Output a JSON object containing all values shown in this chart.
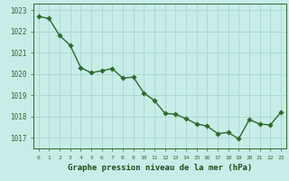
{
  "x": [
    0,
    1,
    2,
    3,
    4,
    5,
    6,
    7,
    8,
    9,
    10,
    11,
    12,
    13,
    14,
    15,
    16,
    17,
    18,
    19,
    20,
    21,
    22,
    23
  ],
  "y": [
    1022.7,
    1022.6,
    1021.8,
    1021.35,
    1020.3,
    1020.05,
    1020.15,
    1020.25,
    1019.8,
    1019.85,
    1019.1,
    1018.75,
    1018.15,
    1018.1,
    1017.9,
    1017.65,
    1017.55,
    1017.2,
    1017.25,
    1016.95,
    1017.85,
    1017.65,
    1017.6,
    1018.2
  ],
  "line_color": "#2d6b2d",
  "marker_color": "#2d6b2d",
  "bg_color": "#c8ece8",
  "grid_color": "#a0d4cc",
  "xlabel": "Graphe pression niveau de la mer (hPa)",
  "xlabel_color": "#1a4d1a",
  "tick_color": "#2d6b2d",
  "ylim_min": 1016.5,
  "ylim_max": 1023.3,
  "yticks": [
    1017,
    1018,
    1019,
    1020,
    1021,
    1022,
    1023
  ],
  "xticks": [
    0,
    1,
    2,
    3,
    4,
    5,
    6,
    7,
    8,
    9,
    10,
    11,
    12,
    13,
    14,
    15,
    16,
    17,
    18,
    19,
    20,
    21,
    22,
    23
  ],
  "xtick_labels": [
    "0",
    "1",
    "2",
    "3",
    "4",
    "5",
    "6",
    "7",
    "8",
    "9",
    "10",
    "11",
    "12",
    "13",
    "14",
    "15",
    "16",
    "17",
    "18",
    "19",
    "20",
    "21",
    "22",
    "23"
  ],
  "line_width": 1.0,
  "marker_size": 2.8,
  "spine_color": "#2d6b2d"
}
